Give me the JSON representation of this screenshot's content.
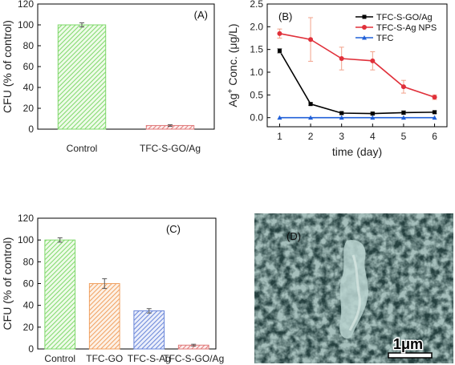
{
  "chart_data": [
    {
      "id": "A",
      "type": "bar",
      "panel_label": "(A)",
      "categories": [
        "Control",
        "TFC-S-GO/Ag"
      ],
      "values": [
        100,
        3.5
      ],
      "errors": [
        2,
        0.8
      ],
      "ylabel": "CFU (% of control)",
      "xlabel": "",
      "ylim": [
        0,
        120
      ],
      "yticks": [
        0,
        20,
        40,
        60,
        80,
        100,
        120
      ],
      "bar_colors": [
        "#7fd86b",
        "#e07a7a"
      ],
      "hatch": "diagonal"
    },
    {
      "id": "B",
      "type": "line",
      "panel_label": "(B)",
      "x": [
        1,
        2,
        3,
        4,
        5,
        6
      ],
      "series": [
        {
          "name": "TFC-S-GO/Ag",
          "values": [
            1.47,
            0.3,
            0.1,
            0.09,
            0.11,
            0.12
          ],
          "errors": [
            0.05,
            0.03,
            0.03,
            0.03,
            0.04,
            0.03
          ],
          "color": "#000000",
          "marker": "square"
        },
        {
          "name": "TFC-S-Ag NPS",
          "values": [
            1.85,
            1.72,
            1.3,
            1.25,
            0.68,
            0.45
          ],
          "errors": [
            0.1,
            0.48,
            0.25,
            0.2,
            0.14,
            0.05
          ],
          "color": "#e0303a",
          "marker": "circle"
        },
        {
          "name": "TFC",
          "values": [
            0.0,
            0.0,
            0.0,
            0.0,
            0.0,
            0.0
          ],
          "errors": [
            0,
            0,
            0,
            0,
            0,
            0
          ],
          "color": "#2060d8",
          "marker": "triangle"
        }
      ],
      "xlabel": "time (day)",
      "ylabel_main": "Ag",
      "ylabel_sup": "+",
      "ylabel_rest": " Conc. (μg/L)",
      "xlim": [
        0.6,
        6.4
      ],
      "ylim": [
        -0.2,
        2.5
      ],
      "xticks": [
        1,
        2,
        3,
        4,
        5,
        6
      ],
      "yticks": [
        0.0,
        0.5,
        1.0,
        1.5,
        2.0,
        2.5
      ],
      "ytick_labels": [
        "0.0",
        "0.5",
        "1.0",
        "1.5",
        "2.0",
        "2.5"
      ],
      "legend": "top-right"
    },
    {
      "id": "C",
      "type": "bar",
      "panel_label": "(C)",
      "categories": [
        "Control",
        "TFC-GO",
        "TFC-S-Ag",
        "TFC-S-GO/Ag"
      ],
      "values": [
        100,
        60,
        35,
        3.5
      ],
      "errors": [
        2,
        4.5,
        2,
        0.8
      ],
      "ylabel": "CFU (% of control)",
      "xlabel": "",
      "ylim": [
        0,
        120
      ],
      "yticks": [
        0,
        20,
        40,
        60,
        80,
        100,
        120
      ],
      "bar_colors": [
        "#7fd86b",
        "#f0a060",
        "#6a86d8",
        "#e07a7a"
      ],
      "hatch": "diagonal"
    }
  ],
  "sem_image": {
    "panel_label": "(D)",
    "scale_bar_label": "1μm"
  }
}
